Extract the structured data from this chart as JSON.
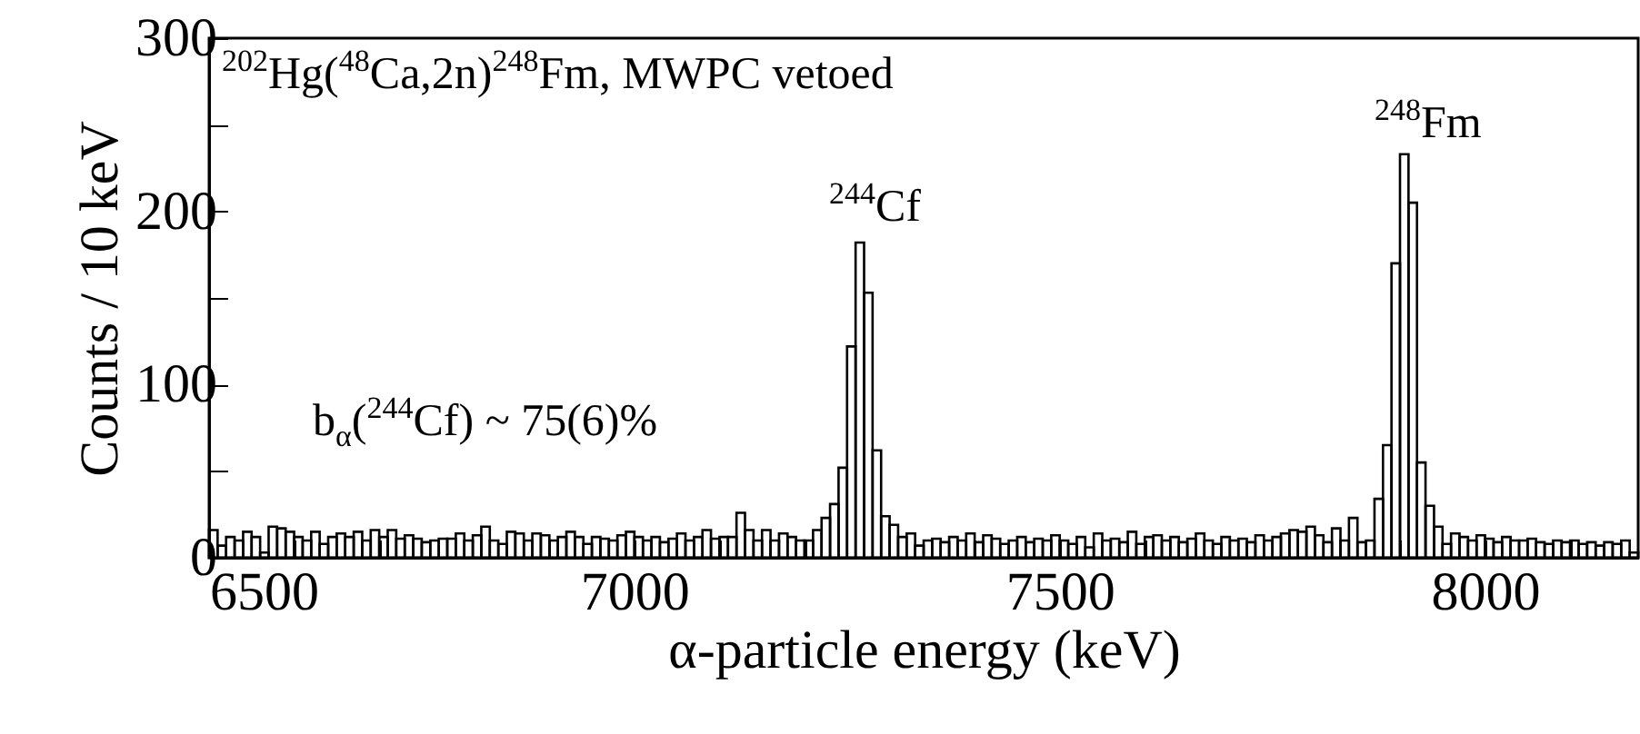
{
  "chart_data": {
    "type": "histogram",
    "xlabel": "α-particle energy (keV)",
    "ylabel": "Counts / 10 keV",
    "color": "#000000",
    "bins": [
      6500,
      6510,
      6520,
      6530,
      6540,
      6550,
      6560,
      6570,
      6580,
      6590,
      6600,
      6610,
      6620,
      6630,
      6640,
      6650,
      6660,
      6670,
      6680,
      6690,
      6700,
      6710,
      6720,
      6730,
      6740,
      6750,
      6760,
      6770,
      6780,
      6790,
      6800,
      6810,
      6820,
      6830,
      6840,
      6850,
      6860,
      6870,
      6880,
      6890,
      6900,
      6910,
      6920,
      6930,
      6940,
      6950,
      6960,
      6970,
      6980,
      6990,
      7000,
      7010,
      7020,
      7030,
      7040,
      7050,
      7060,
      7070,
      7080,
      7090,
      7100,
      7110,
      7120,
      7130,
      7140,
      7150,
      7160,
      7170,
      7180,
      7190,
      7200,
      7210,
      7220,
      7230,
      7240,
      7250,
      7260,
      7270,
      7280,
      7290,
      7300,
      7310,
      7320,
      7330,
      7340,
      7350,
      7360,
      7370,
      7380,
      7390,
      7400,
      7410,
      7420,
      7430,
      7440,
      7450,
      7460,
      7470,
      7480,
      7490,
      7500,
      7510,
      7520,
      7530,
      7540,
      7550,
      7560,
      7570,
      7580,
      7590,
      7600,
      7610,
      7620,
      7630,
      7640,
      7650,
      7660,
      7670,
      7680,
      7690,
      7700,
      7710,
      7720,
      7730,
      7740,
      7750,
      7760,
      7770,
      7780,
      7790,
      7800,
      7810,
      7820,
      7830,
      7840,
      7850,
      7860,
      7870,
      7880,
      7890,
      7900,
      7910,
      7920,
      7930,
      7940,
      7950,
      7960,
      7970,
      7980,
      7990,
      8000,
      8010,
      8020,
      8030,
      8040,
      8050,
      8060,
      8070,
      8080,
      8090,
      8100,
      8110,
      8120,
      8130,
      8140,
      8150,
      8160,
      8170,
      8180
    ],
    "values": [
      16,
      7,
      12,
      10,
      15,
      12,
      3,
      18,
      17,
      15,
      12,
      10,
      15,
      8,
      12,
      14,
      12,
      15,
      10,
      16,
      12,
      16,
      11,
      13,
      11,
      9,
      10,
      11,
      11,
      14,
      10,
      13,
      18,
      10,
      8,
      15,
      14,
      10,
      14,
      13,
      10,
      12,
      15,
      12,
      8,
      12,
      11,
      10,
      13,
      15,
      12,
      10,
      12,
      9,
      11,
      14,
      10,
      12,
      16,
      11,
      12,
      12,
      26,
      16,
      10,
      16,
      10,
      14,
      12,
      10,
      10,
      16,
      23,
      31,
      52,
      122,
      182,
      153,
      62,
      24,
      19,
      12,
      14,
      7,
      10,
      11,
      9,
      12,
      10,
      14,
      9,
      13,
      11,
      8,
      10,
      12,
      9,
      11,
      10,
      13,
      10,
      8,
      12,
      6,
      14,
      10,
      11,
      9,
      15,
      8,
      12,
      13,
      10,
      12,
      9,
      11,
      14,
      10,
      8,
      12,
      10,
      11,
      9,
      13,
      10,
      12,
      14,
      16,
      15,
      18,
      13,
      9,
      17,
      10,
      23,
      9,
      10,
      34,
      65,
      170,
      233,
      205,
      55,
      30,
      18,
      8,
      14,
      12,
      10,
      13,
      11,
      9,
      12,
      10,
      10,
      11,
      9,
      8,
      10,
      9,
      10,
      8,
      9,
      7,
      9,
      8,
      10,
      3
    ],
    "xlim": [
      6500,
      8180
    ],
    "xticks": [
      6500,
      {
        "value": 6600,
        "label": null
      },
      {
        "value": 6700,
        "label": null
      },
      {
        "value": 6800,
        "label": null
      },
      {
        "value": 6900,
        "label": null
      },
      7000,
      {
        "value": 7100,
        "label": null
      },
      {
        "value": 7200,
        "label": null
      },
      {
        "value": 7300,
        "label": null
      },
      {
        "value": 7400,
        "label": null
      },
      7500,
      {
        "value": 7600,
        "label": null
      },
      {
        "value": 7700,
        "label": null
      },
      {
        "value": 7800,
        "label": null
      },
      {
        "value": 7900,
        "label": null
      },
      8000,
      {
        "value": 8100,
        "label": null
      }
    ],
    "ylim": [
      0,
      300
    ],
    "yticks": [
      0,
      {
        "value": 50,
        "label": null
      },
      100,
      {
        "value": 150,
        "label": null
      },
      200,
      {
        "value": 250,
        "label": null
      },
      300
    ],
    "annotations": [
      "$^{202}$Hg($^{48}$Ca,2n)$^{248}$Fm, MWPC vetoed",
      "$^{244}$Cf",
      "$^{248}$Fm",
      "b$_{α}$($^{244}$Cf) ~ 75(6)%"
    ]
  }
}
